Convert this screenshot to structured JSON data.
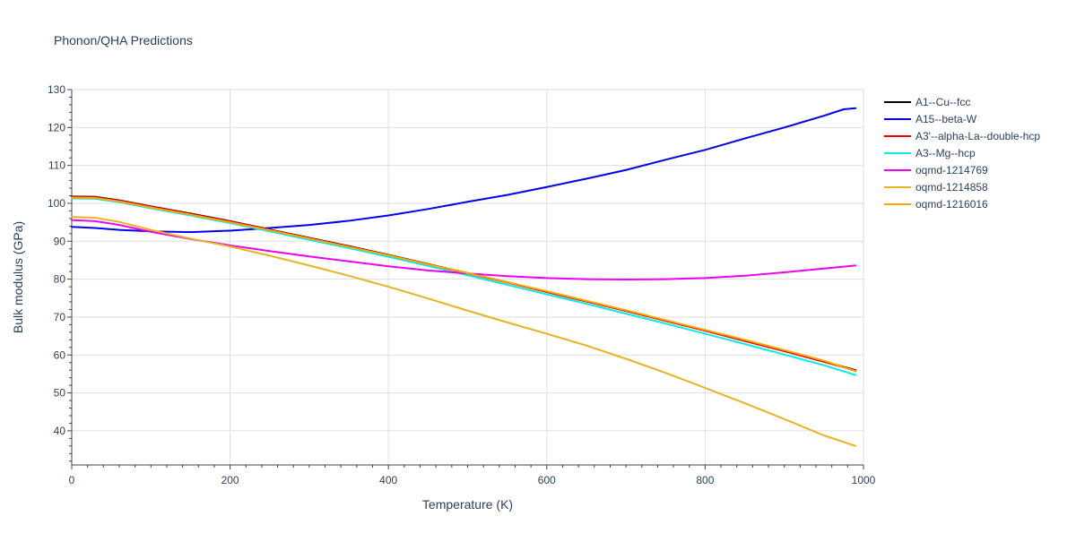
{
  "chart_data": {
    "type": "line",
    "title": "Phonon/QHA Predictions",
    "xlabel": "Temperature (K)",
    "ylabel": "Bulk modulus (GPa)",
    "xlim": [
      0,
      1000
    ],
    "ylim": [
      31,
      130
    ],
    "xticks": [
      0,
      200,
      400,
      600,
      800,
      1000
    ],
    "yticks": [
      40,
      50,
      60,
      70,
      80,
      90,
      100,
      110,
      120,
      130
    ],
    "grid": true,
    "legend_position": "right",
    "series": [
      {
        "name": "A1--Cu--fcc",
        "color": "#000000",
        "x": [
          0,
          30,
          60,
          100,
          150,
          200,
          250,
          300,
          350,
          400,
          450,
          500,
          550,
          600,
          650,
          700,
          750,
          800,
          850,
          900,
          950,
          990
        ],
        "y": [
          101.8,
          101.7,
          100.8,
          99.2,
          97.3,
          95.3,
          93.1,
          90.9,
          88.7,
          86.4,
          84.0,
          81.6,
          79.2,
          76.7,
          74.2,
          71.7,
          69.1,
          66.5,
          63.8,
          61.1,
          58.3,
          56.0
        ]
      },
      {
        "name": "A15--beta-W",
        "color": "#0000ee",
        "x": [
          0,
          30,
          60,
          100,
          150,
          200,
          250,
          300,
          350,
          400,
          450,
          500,
          550,
          600,
          650,
          700,
          750,
          800,
          850,
          900,
          950,
          975,
          990
        ],
        "y": [
          93.8,
          93.5,
          93.0,
          92.6,
          92.4,
          92.8,
          93.5,
          94.3,
          95.4,
          96.8,
          98.5,
          100.4,
          102.2,
          104.3,
          106.5,
          108.8,
          111.5,
          114.1,
          117.1,
          120.0,
          123.1,
          124.8,
          125.1
        ]
      },
      {
        "name": "A3'--alpha-La--double-hcp",
        "color": "#ee0000",
        "x": [
          0,
          30,
          60,
          100,
          150,
          200,
          250,
          300,
          350,
          400,
          450,
          500,
          550,
          600,
          650,
          700,
          750,
          800,
          850,
          900,
          950,
          990
        ],
        "y": [
          101.7,
          101.6,
          100.7,
          99.1,
          97.2,
          95.2,
          93.0,
          90.8,
          88.6,
          86.3,
          83.9,
          81.5,
          79.1,
          76.6,
          74.1,
          71.6,
          69.0,
          66.4,
          63.7,
          61.0,
          58.2,
          55.9
        ]
      },
      {
        "name": "A3--Mg--hcp",
        "color": "#00eeee",
        "x": [
          0,
          30,
          60,
          100,
          150,
          200,
          250,
          300,
          350,
          400,
          450,
          500,
          550,
          600,
          650,
          700,
          750,
          800,
          850,
          900,
          950,
          990
        ],
        "y": [
          101.3,
          101.2,
          100.3,
          98.7,
          96.8,
          94.8,
          92.6,
          90.4,
          88.2,
          85.9,
          83.5,
          81.0,
          78.5,
          76.0,
          73.5,
          70.9,
          68.3,
          65.6,
          62.9,
          60.1,
          57.3,
          54.7
        ]
      },
      {
        "name": "oqmd-1214769",
        "color": "#ee00ee",
        "x": [
          0,
          30,
          60,
          100,
          150,
          200,
          250,
          300,
          350,
          400,
          450,
          500,
          550,
          600,
          650,
          700,
          750,
          800,
          850,
          900,
          950,
          990
        ],
        "y": [
          95.6,
          95.3,
          94.3,
          92.5,
          90.6,
          88.9,
          87.4,
          86.0,
          84.7,
          83.4,
          82.3,
          81.5,
          80.8,
          80.3,
          80.0,
          79.9,
          80.0,
          80.3,
          80.9,
          81.8,
          82.8,
          83.6
        ]
      },
      {
        "name": "oqmd-1214858",
        "color": "#e6b422",
        "x": [
          0,
          30,
          60,
          100,
          150,
          200,
          250,
          300,
          350,
          400,
          450,
          500,
          550,
          600,
          650,
          700,
          750,
          800,
          850,
          900,
          950,
          990
        ],
        "y": [
          96.4,
          96.2,
          95.1,
          93.0,
          90.7,
          88.6,
          86.2,
          83.6,
          80.9,
          78.0,
          74.9,
          71.7,
          68.6,
          65.6,
          62.5,
          59.0,
          55.3,
          51.3,
          47.3,
          43.1,
          38.8,
          36.0
        ]
      },
      {
        "name": "oqmd-1216016",
        "color": "#ffa500",
        "x": [
          0,
          30,
          60,
          100,
          150,
          200,
          250,
          300,
          350,
          400,
          450,
          500,
          550,
          600,
          650,
          700,
          750,
          800,
          850,
          900,
          950,
          990
        ],
        "y": [
          101.5,
          101.4,
          100.5,
          98.9,
          97.0,
          95.0,
          92.9,
          90.7,
          88.5,
          86.3,
          83.9,
          81.6,
          79.2,
          76.8,
          74.3,
          71.8,
          69.2,
          66.6,
          64.0,
          61.3,
          58.5,
          55.7
        ]
      }
    ]
  }
}
